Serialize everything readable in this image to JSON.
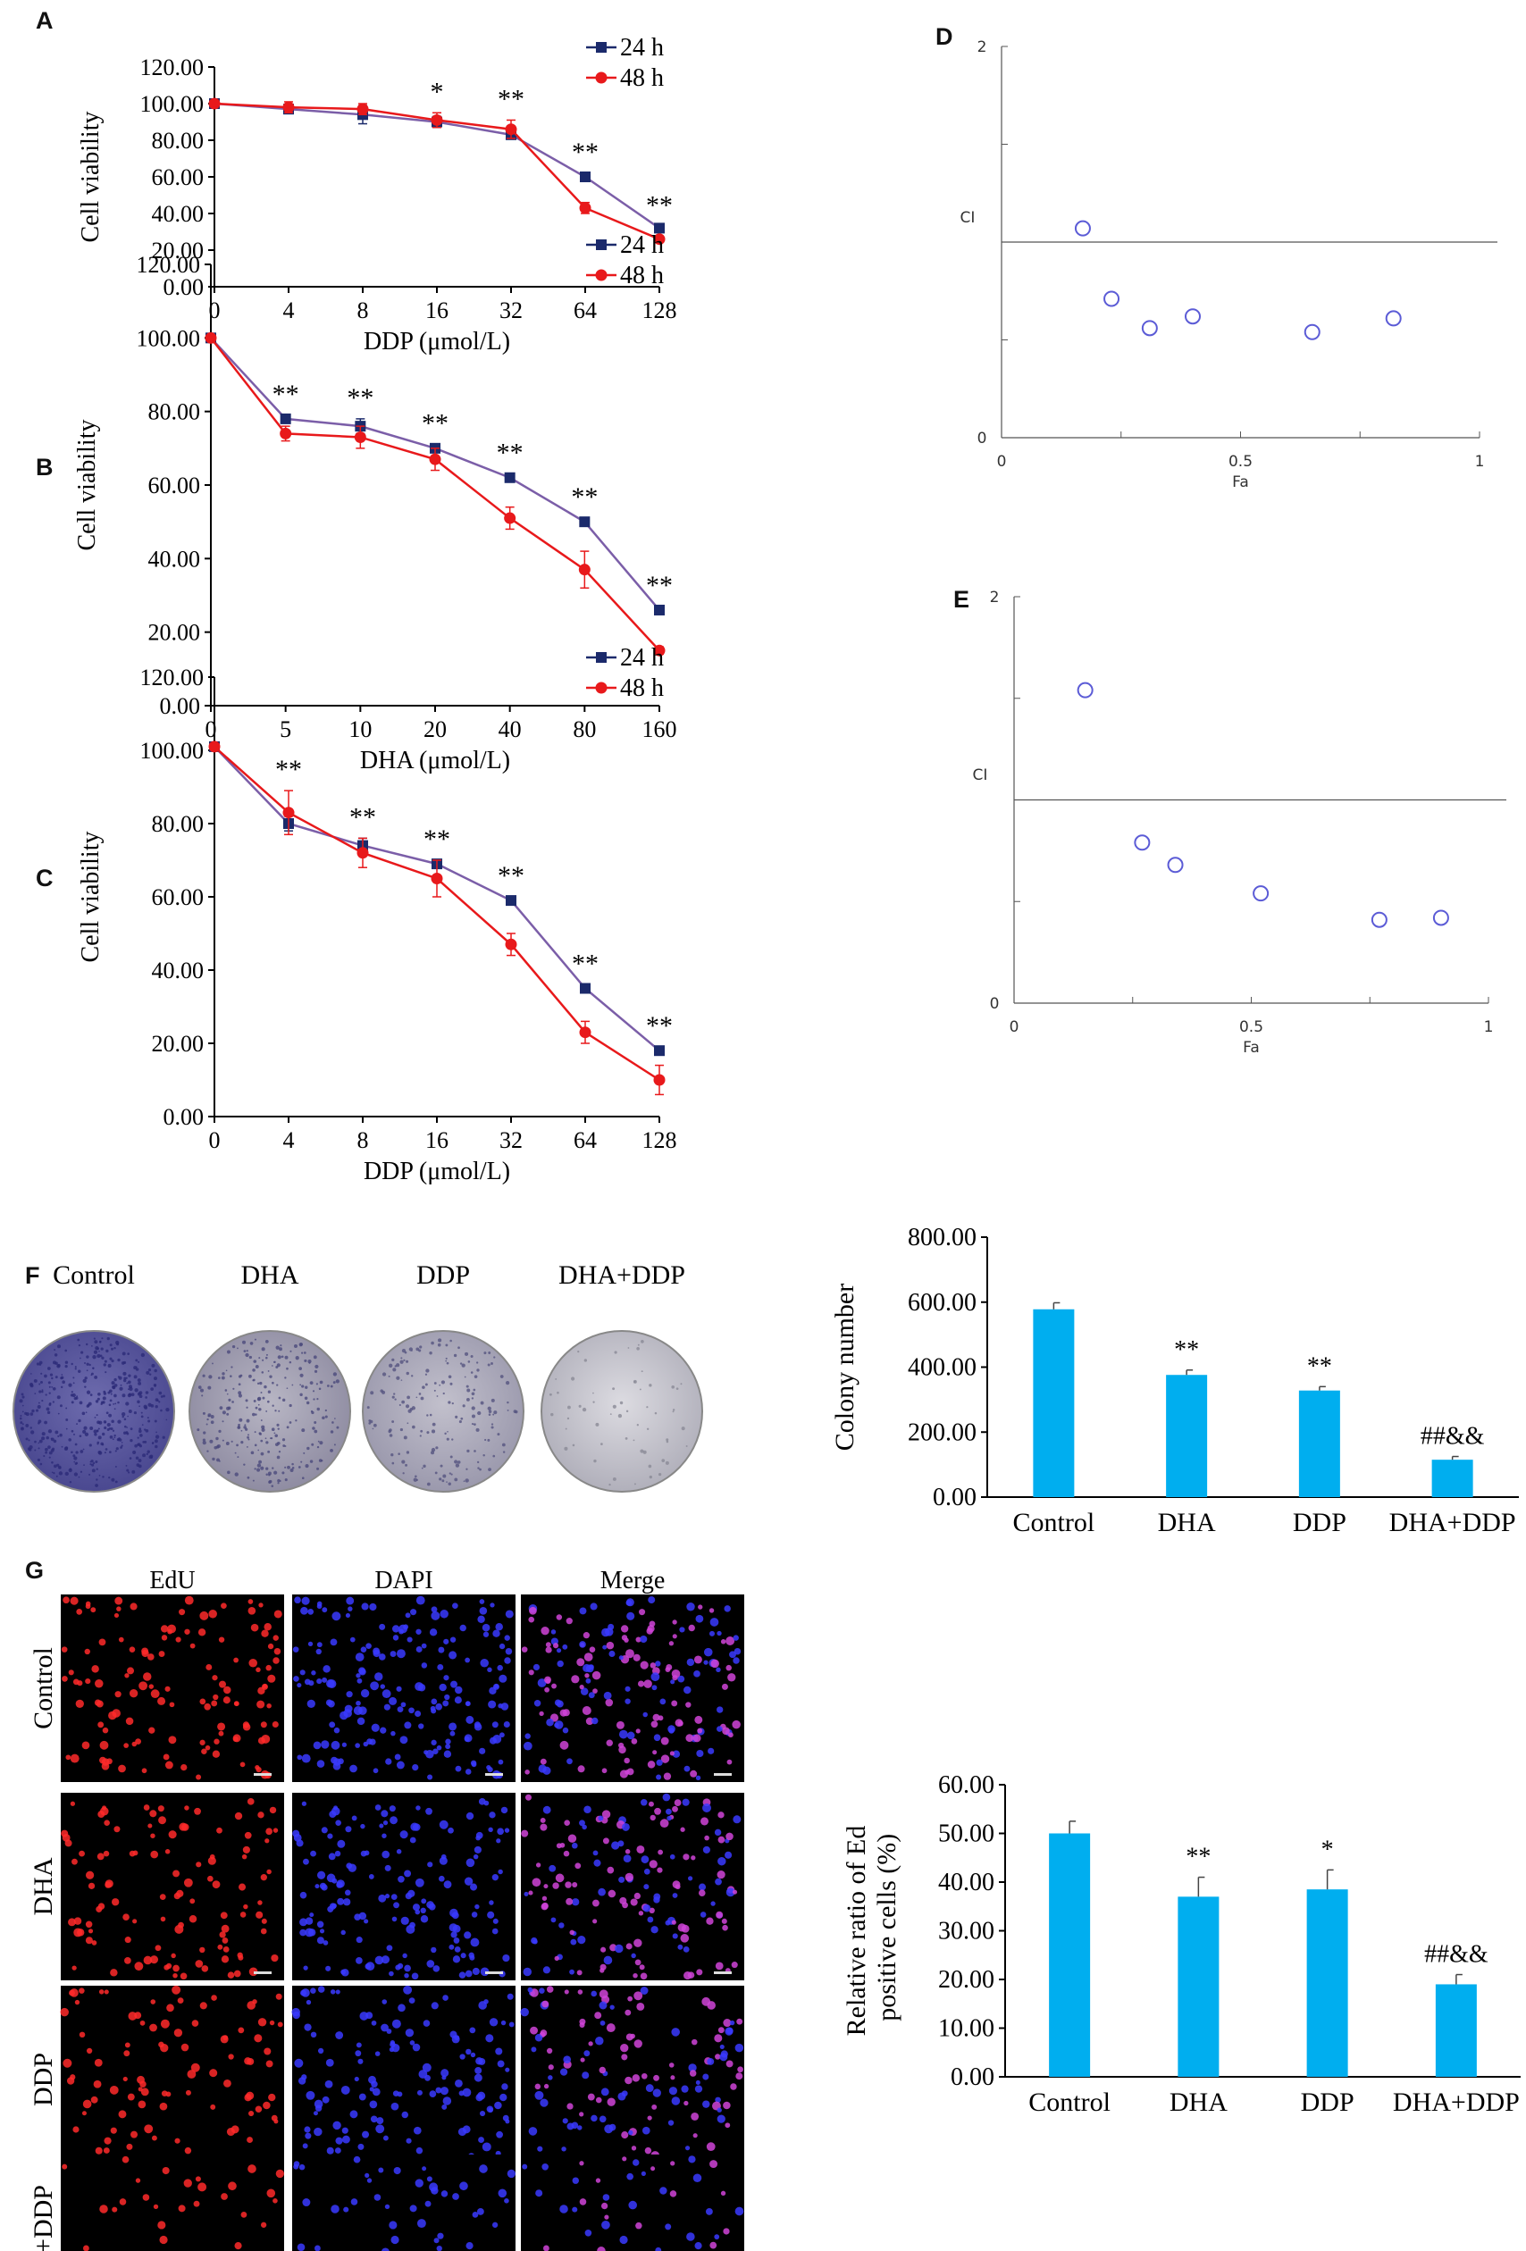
{
  "chart_data": [
    {
      "id": "A",
      "type": "line",
      "categories": [
        "0",
        "4",
        "8",
        "16",
        "32",
        "64",
        "128"
      ],
      "xlabel": "DDP (μmol/L)",
      "ylabel": "Cell viability",
      "ylim": [
        0,
        120
      ],
      "yticks": [
        "0.00",
        "20.00",
        "40.00",
        "60.00",
        "80.00",
        "100.00",
        "120.00"
      ],
      "legend_position": "top-right",
      "grid": false,
      "series": [
        {
          "name": "24 h",
          "color": "#1b2a6b",
          "marker": "square",
          "values": [
            100,
            97,
            94,
            90,
            83,
            60,
            32
          ],
          "err": [
            0,
            2,
            5,
            3,
            2,
            2,
            1
          ]
        },
        {
          "name": "48 h",
          "color": "#e8191b",
          "marker": "circle",
          "values": [
            100,
            98,
            97,
            91,
            86,
            43,
            26
          ],
          "err": [
            0,
            3,
            3,
            4,
            5,
            3,
            1
          ]
        }
      ],
      "annotations": [
        "",
        "",
        "",
        "*",
        "**",
        "**",
        "**"
      ]
    },
    {
      "id": "B",
      "type": "line",
      "categories": [
        "0",
        "5",
        "10",
        "20",
        "40",
        "80",
        "160"
      ],
      "xlabel": "DHA (μmol/L)",
      "ylabel": "Cell viability",
      "ylim": [
        0,
        120
      ],
      "yticks": [
        "0.00",
        "20.00",
        "40.00",
        "60.00",
        "80.00",
        "100.00",
        "120.00"
      ],
      "legend_position": "top-right",
      "grid": false,
      "series": [
        {
          "name": "24 h",
          "color": "#1b2a6b",
          "marker": "square",
          "values": [
            100,
            78,
            76,
            70,
            62,
            50,
            26
          ],
          "err": [
            0,
            1,
            2,
            1,
            1,
            1,
            1
          ]
        },
        {
          "name": "48 h",
          "color": "#e8191b",
          "marker": "circle",
          "values": [
            100,
            74,
            73,
            67,
            51,
            37,
            15
          ],
          "err": [
            0,
            2,
            3,
            3,
            3,
            5,
            1
          ]
        }
      ],
      "annotations": [
        "",
        "**",
        "**",
        "**",
        "**",
        "**",
        "**"
      ]
    },
    {
      "id": "C",
      "type": "line",
      "categories": [
        "0",
        "4",
        "8",
        "16",
        "32",
        "64",
        "128"
      ],
      "xlabel": "DDP (μmol/L)",
      "ylabel": "Cell viability",
      "ylim": [
        0,
        120
      ],
      "yticks": [
        "0.00",
        "20.00",
        "40.00",
        "60.00",
        "80.00",
        "100.00",
        "120.00"
      ],
      "legend_position": "top-right",
      "grid": false,
      "series": [
        {
          "name": "24 h",
          "color": "#1b2a6b",
          "marker": "square",
          "values": [
            101,
            80,
            74,
            69,
            59,
            35,
            18
          ],
          "err": [
            0,
            2,
            2,
            1,
            1,
            1,
            1
          ]
        },
        {
          "name": "48 h",
          "color": "#e8191b",
          "marker": "circle",
          "values": [
            101,
            83,
            72,
            65,
            47,
            23,
            10
          ],
          "err": [
            0,
            6,
            4,
            5,
            3,
            3,
            4
          ]
        }
      ],
      "annotations": [
        "",
        "**",
        "**",
        "**",
        "**",
        "**",
        "**"
      ]
    },
    {
      "id": "D",
      "type": "scatter",
      "xlabel": "Fa",
      "ylabel": "CI",
      "xlim": [
        0,
        1
      ],
      "ylim": [
        0,
        2
      ],
      "xticks": [
        "0",
        "0.5",
        "1"
      ],
      "yticks": [
        "0",
        "2"
      ],
      "reference_line": 1,
      "points": [
        [
          0.17,
          1.07
        ],
        [
          0.23,
          0.71
        ],
        [
          0.31,
          0.56
        ],
        [
          0.4,
          0.62
        ],
        [
          0.65,
          0.54
        ],
        [
          0.82,
          0.61
        ]
      ]
    },
    {
      "id": "E",
      "type": "scatter",
      "xlabel": "Fa",
      "ylabel": "CI",
      "xlim": [
        0,
        1
      ],
      "ylim": [
        0,
        2
      ],
      "xticks": [
        "0",
        "0.5",
        "1"
      ],
      "yticks": [
        "0",
        "2"
      ],
      "reference_line": 1,
      "points": [
        [
          0.15,
          1.54
        ],
        [
          0.27,
          0.79
        ],
        [
          0.34,
          0.68
        ],
        [
          0.52,
          0.54
        ],
        [
          0.77,
          0.41
        ],
        [
          0.9,
          0.42
        ]
      ]
    },
    {
      "id": "F",
      "type": "bar",
      "categories": [
        "Control",
        "DHA",
        "DDP",
        "DHA+DDP"
      ],
      "values": [
        578,
        376,
        328,
        115
      ],
      "err": [
        20,
        15,
        12,
        10
      ],
      "ylabel": "Colony number",
      "ylim": [
        0,
        800
      ],
      "yticks": [
        "0.00",
        "200.00",
        "400.00",
        "600.00",
        "800.00"
      ],
      "color": "#00aeef",
      "annotations": [
        "",
        "**",
        "**",
        "##&&"
      ]
    },
    {
      "id": "G",
      "type": "bar",
      "categories": [
        "Control",
        "DHA",
        "DDP",
        "DHA+DDP"
      ],
      "values": [
        50,
        37,
        38.5,
        19
      ],
      "err": [
        2.5,
        4,
        4,
        2
      ],
      "ylabel": "Relative ratio of EdU positive cells (%)",
      "ylim": [
        0,
        60
      ],
      "yticks": [
        "0.00",
        "10.00",
        "20.00",
        "30.00",
        "40.00",
        "50.00",
        "60.00"
      ],
      "color": "#00aeef",
      "annotations": [
        "",
        "**",
        "*",
        "##&&"
      ]
    }
  ],
  "panel_labels": [
    "A",
    "B",
    "C",
    "D",
    "E",
    "F",
    "G"
  ],
  "colony_images": {
    "labels": [
      "Control",
      "DHA",
      "DDP",
      "DHA+DDP"
    ],
    "fill_colors": [
      "#5b5a9e",
      "#a29fb2",
      "#b0aec0",
      "#c8c7cf"
    ]
  },
  "edu_images": {
    "column_labels": [
      "EdU",
      "DAPI",
      "Merge"
    ],
    "row_labels": [
      "Control",
      "DHA",
      "DDP",
      "DHA+DDP"
    ],
    "channel_colors": [
      "#ff2a2a",
      "#3a3aff",
      "#d044d8"
    ]
  }
}
